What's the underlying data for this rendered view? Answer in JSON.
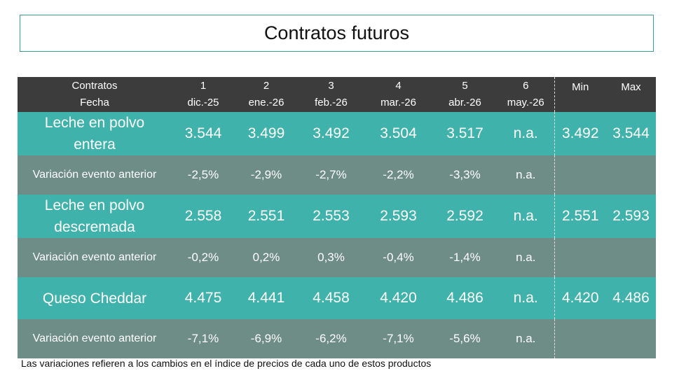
{
  "title": "Contratos futuros",
  "header": {
    "contracts_label": "Contratos",
    "date_label": "Fecha",
    "columns": [
      {
        "num": "1",
        "date": "dic.-25"
      },
      {
        "num": "2",
        "date": "ene.-26"
      },
      {
        "num": "3",
        "date": "feb.-26"
      },
      {
        "num": "4",
        "date": "mar.-26"
      },
      {
        "num": "5",
        "date": "abr.-26"
      },
      {
        "num": "6",
        "date": "may.-26"
      }
    ],
    "min_label": "Min",
    "max_label": "Max"
  },
  "rows": [
    {
      "name_line1": "Leche en polvo",
      "name_line2": "entera",
      "values": [
        "3.544",
        "3.499",
        "3.492",
        "3.504",
        "3.517",
        "n.a."
      ],
      "min": "3.492",
      "max": "3.544",
      "variation_label": "Variación evento anterior",
      "variations": [
        "-2,5%",
        "-2,9%",
        "-2,7%",
        "-2,2%",
        "-3,3%",
        "n.a."
      ]
    },
    {
      "name_line1": "Leche en polvo",
      "name_line2": "descremada",
      "values": [
        "2.558",
        "2.551",
        "2.553",
        "2.593",
        "2.592",
        "n.a."
      ],
      "min": "2.551",
      "max": "2.593",
      "variation_label": "Variación evento anterior",
      "variations": [
        "-0,2%",
        "0,2%",
        "0,3%",
        "-0,4%",
        "-1,4%",
        "n.a."
      ]
    },
    {
      "name_line1": "Queso Cheddar",
      "values": [
        "4.475",
        "4.441",
        "4.458",
        "4.420",
        "4.486",
        "n.a."
      ],
      "min": "4.420",
      "max": "4.486",
      "variation_label": "Variación evento anterior",
      "variations": [
        "-7,1%",
        "-6,9%",
        "-6,2%",
        "-7,1%",
        "-5,6%",
        "n.a."
      ]
    }
  ],
  "footnote": "Las variaciones refieren a los cambios en el índice de precios de cada uno de estos productos",
  "colors": {
    "header_bg": "#3c3c3c",
    "product_bg": "#3fb3ab",
    "variation_bg": "#6e8d86",
    "title_border": "#3a9e94"
  }
}
